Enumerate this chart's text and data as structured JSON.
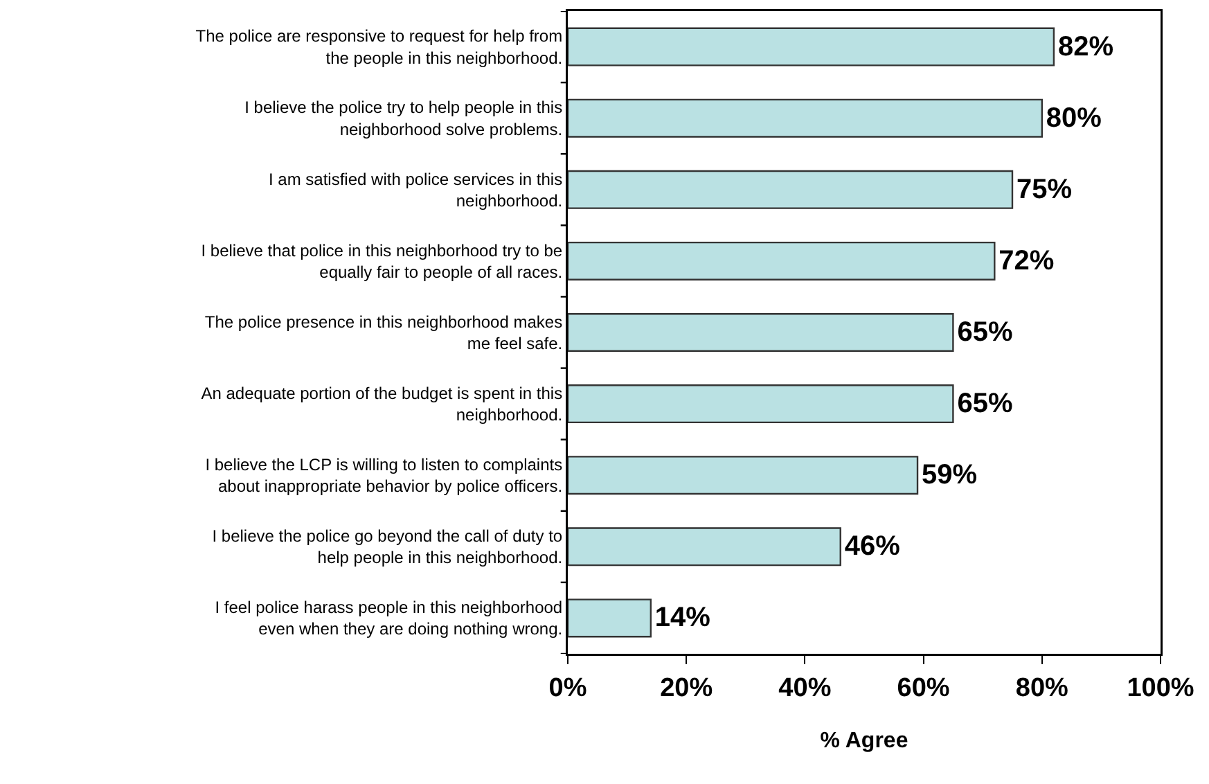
{
  "chart_data": {
    "type": "bar",
    "orientation": "horizontal",
    "xlabel": "% Agree",
    "categories": [
      "The police are responsive to request for help from\nthe people in this neighborhood.",
      "I believe the police try to help people in this\nneighborhood solve problems.",
      "I am satisfied with police services in this\nneighborhood.",
      "I believe that police in this neighborhood try to be\nequally fair to people of all races.",
      "The police presence in this neighborhood makes\nme feel safe.",
      "An adequate portion of the budget is spent in this\nneighborhood.",
      "I believe the LCP is willing to listen to complaints\nabout inappropriate behavior by police officers.",
      "I believe the police go beyond the call of duty to\nhelp people in this neighborhood.",
      "I feel police harass people in this neighborhood\neven when they are doing nothing wrong."
    ],
    "values": [
      82,
      80,
      75,
      72,
      65,
      65,
      59,
      46,
      14
    ],
    "value_labels": [
      "82%",
      "80%",
      "75%",
      "72%",
      "65%",
      "65%",
      "59%",
      "46%",
      "14%"
    ],
    "color": "#bae1e3",
    "xlim": [
      0,
      100
    ],
    "xticks": [
      {
        "value": 0,
        "label": "0%"
      },
      {
        "value": 20,
        "label": "20%"
      },
      {
        "value": 40,
        "label": "40%"
      },
      {
        "value": 60,
        "label": "60%"
      },
      {
        "value": 80,
        "label": "80%"
      },
      {
        "value": 100,
        "label": "100%"
      }
    ],
    "grid": false,
    "legend": false
  }
}
